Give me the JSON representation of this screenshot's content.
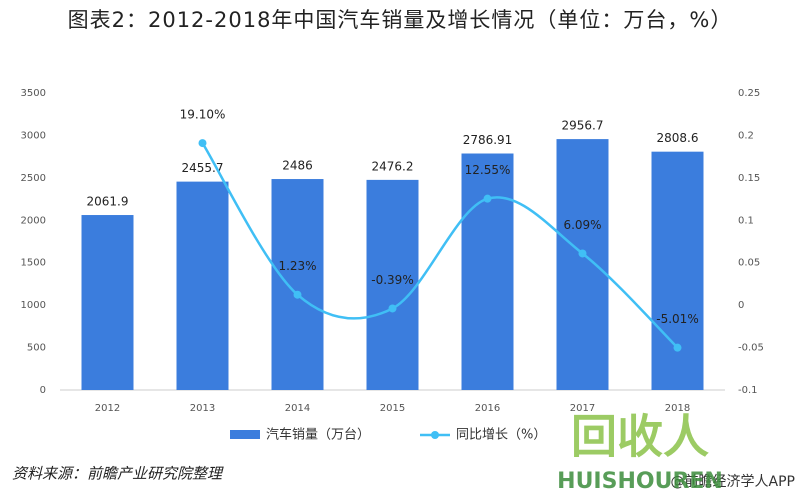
{
  "chart_data": {
    "type": "bar_line",
    "title": "图表2：2012-2018年中国汽车销量及增长情况（单位：万台，%）",
    "categories": [
      "2012",
      "2013",
      "2014",
      "2015",
      "2016",
      "2017",
      "2018"
    ],
    "series": [
      {
        "name": "汽车销量（万台）",
        "type": "bar",
        "color": "#3b7ddd",
        "values": [
          2061.9,
          2455.7,
          2486,
          2476.2,
          2786.91,
          2956.7,
          2808.6
        ]
      },
      {
        "name": "同比增长（%）",
        "type": "line",
        "axis": "y2",
        "color": "#40bff5",
        "values": [
          null,
          0.191,
          0.0123,
          -0.0039,
          0.1255,
          0.0609,
          -0.0501
        ],
        "value_labels": [
          null,
          "19.10%",
          "1.23%",
          "-0.39%",
          "12.55%",
          "6.09%",
          "-5.01%"
        ]
      }
    ],
    "ylim": [
      0,
      3500
    ],
    "yticks": [
      0,
      500,
      1000,
      1500,
      2000,
      2500,
      3000,
      3500
    ],
    "y2lim": [
      -0.1,
      0.25
    ],
    "y2ticks": [
      -0.1,
      -0.05,
      0,
      0.05,
      0.1,
      0.15,
      0.2,
      0.25
    ],
    "grid": false,
    "legend": "bottom",
    "source": "资料来源：前瞻产业研究院整理",
    "footer_right": "@前瞻经济学人APP",
    "watermark": [
      "回收人",
      "HUISHOUREN"
    ]
  }
}
